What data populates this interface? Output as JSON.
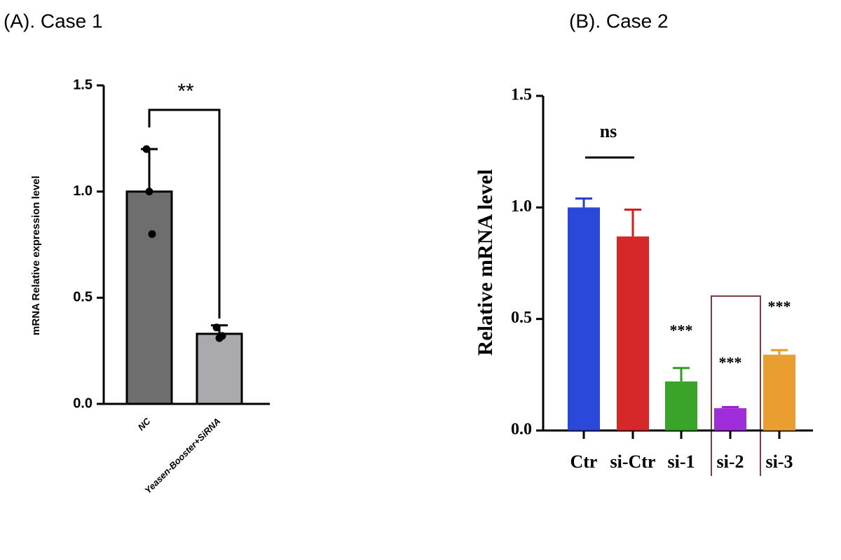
{
  "chart_data": [
    {
      "type": "bar",
      "title": "(A). Case 1",
      "ylabel": "mRNA Relative expression level",
      "categories": [
        "NC",
        "Yeasen-Booster+SiRNA"
      ],
      "values": [
        1.0,
        0.33
      ],
      "errors": [
        0.2,
        0.04
      ],
      "points": [
        [
          1.2,
          1.0,
          0.8
        ],
        [
          0.36,
          0.31,
          0.32
        ]
      ],
      "colors": [
        "#6e6e6e",
        "#a9a9ae"
      ],
      "ylim": [
        0,
        1.5
      ],
      "yticks": [
        {
          "value": 0,
          "label": "0.0"
        },
        {
          "value": 0.5,
          "label": "0.5"
        },
        {
          "value": 1,
          "label": "1.0"
        },
        {
          "value": 1.5,
          "label": "1.5"
        }
      ],
      "annotations": [
        "**"
      ]
    },
    {
      "type": "bar",
      "title": "(B). Case 2",
      "ylabel": "Relative mRNA level",
      "categories": [
        "Ctr",
        "si-Ctr",
        "si-1",
        "si-2",
        "si-3"
      ],
      "values": [
        1.0,
        0.87,
        0.22,
        0.1,
        0.34
      ],
      "errors": [
        0.04,
        0.12,
        0.06,
        0.005,
        0.02
      ],
      "colors": [
        "#1f3ed8",
        "#d41c1c",
        "#2f9e1f",
        "#9a22d8",
        "#e89a24"
      ],
      "ylim": [
        0,
        1.5
      ],
      "yticks": [
        {
          "value": 0,
          "label": "0.0"
        },
        {
          "value": 0.5,
          "label": "0.5"
        },
        {
          "value": 1,
          "label": "1.0"
        },
        {
          "value": 1.5,
          "label": "1.5"
        }
      ],
      "annotations": [
        "ns",
        "***",
        "***",
        "***"
      ]
    }
  ]
}
